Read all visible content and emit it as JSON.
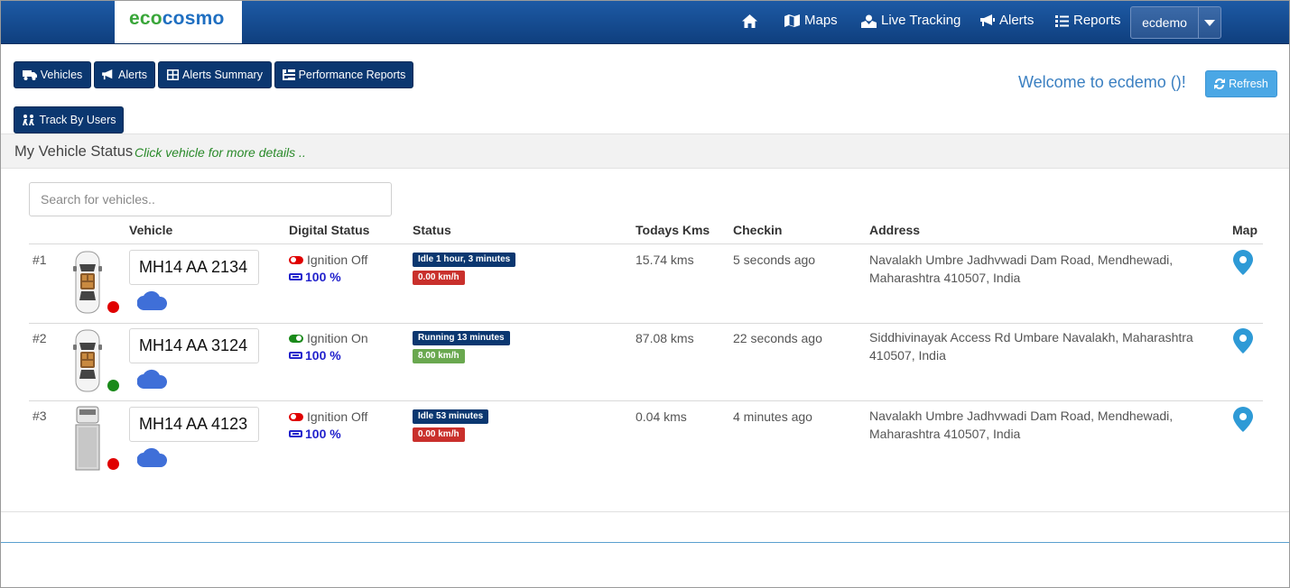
{
  "navbar": {
    "logo_eco": "eco",
    "logo_cosmo": "cosmo",
    "items": [
      {
        "label": "",
        "icon": "home-icon"
      },
      {
        "label": "Maps",
        "icon": "map-icon"
      },
      {
        "label": "Live Tracking",
        "icon": "map-marker-group-icon"
      },
      {
        "label": "Alerts",
        "icon": "bullhorn-icon"
      },
      {
        "label": "Reports",
        "icon": "list-icon"
      }
    ],
    "user": "ecdemo"
  },
  "toolbar": {
    "vehicles": "Vehicles",
    "alerts": "Alerts",
    "alerts_summary": "Alerts Summary",
    "performance_reports": "Performance Reports",
    "track_by_users": "Track By Users",
    "welcome": "Welcome to ecdemo ()!",
    "refresh": "Refresh"
  },
  "status": {
    "title": "My Vehicle Status",
    "hint": "Click vehicle for more details .."
  },
  "search": {
    "placeholder": "Search for vehicles.."
  },
  "table": {
    "headers": {
      "vehicle": "Vehicle",
      "digital_status": "Digital Status",
      "status": "Status",
      "todays_kms": "Todays Kms",
      "checkin": "Checkin",
      "address": "Address",
      "map": "Map"
    },
    "rows": [
      {
        "num": "#1",
        "vehicle_type": "car",
        "plate": "MH14 AA 2134",
        "dot_color": "#e00000",
        "ignition": "Ignition Off",
        "ignition_state": "off",
        "battery": "100 %",
        "status_badge": "Idle 1 hour, 3 minutes",
        "status_color": "#0b3770",
        "speed": "0.00 km/h",
        "speed_color": "#c9302c",
        "kms": "15.74 kms",
        "checkin": "5 seconds ago",
        "address": "Navalakh Umbre Jadhvwadi Dam Road, Mendhewadi, Maharashtra 410507, India"
      },
      {
        "num": "#2",
        "vehicle_type": "car",
        "plate": "MH14 AA 3124",
        "dot_color": "#1a8a1a",
        "ignition": "Ignition On",
        "ignition_state": "on",
        "battery": "100 %",
        "status_badge": "Running 13 minutes",
        "status_color": "#0b3770",
        "speed": "8.00 km/h",
        "speed_color": "#6aa84f",
        "kms": "87.08 kms",
        "checkin": "22 seconds ago",
        "address": "Siddhivinayak Access Rd Umbare Navalakh, Maharashtra 410507, India"
      },
      {
        "num": "#3",
        "vehicle_type": "truck",
        "plate": "MH14 AA 4123",
        "dot_color": "#e00000",
        "ignition": "Ignition Off",
        "ignition_state": "off",
        "battery": "100 %",
        "status_badge": "Idle 53 minutes",
        "status_color": "#0b3770",
        "speed": "0.00 km/h",
        "speed_color": "#c9302c",
        "kms": "0.04 kms",
        "checkin": "4 minutes ago",
        "address": "Navalakh Umbre Jadhvwadi Dam Road, Mendhewadi, Maharashtra 410507, India"
      }
    ]
  },
  "colors": {
    "navbar": "#1d5aa5",
    "button": "#0b3770",
    "refresh": "#4aa7e5",
    "map_pin": "#2e9ad6",
    "cloud": "#3f6fd8"
  }
}
